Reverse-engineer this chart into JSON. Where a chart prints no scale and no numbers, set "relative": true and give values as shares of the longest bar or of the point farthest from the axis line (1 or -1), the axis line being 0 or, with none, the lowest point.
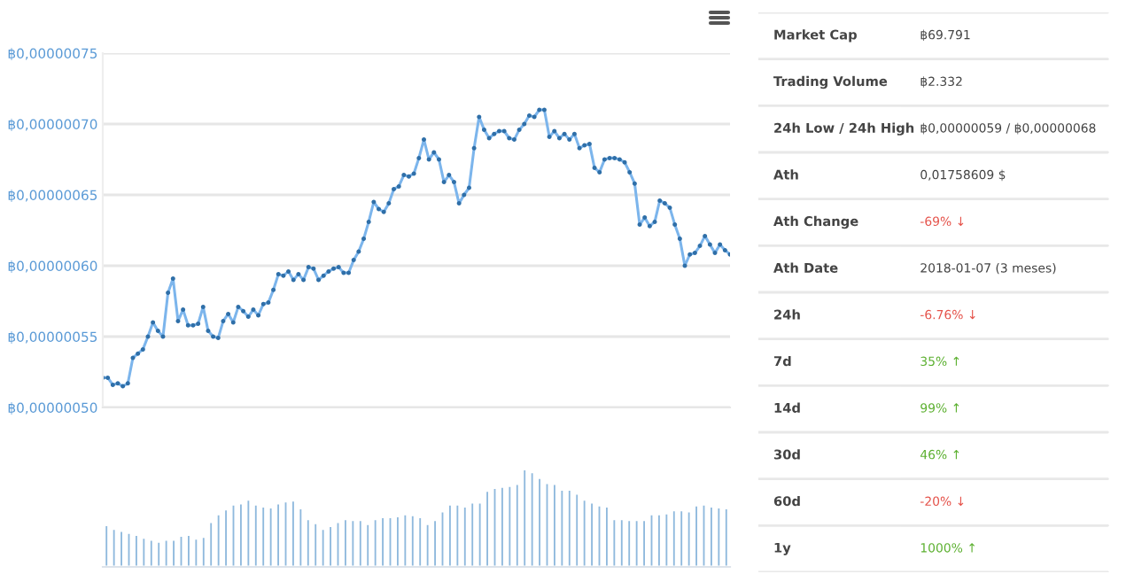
{
  "chart_data": [
    {
      "type": "line",
      "tick_labels": "y",
      "categories": [
        null,
        null,
        null,
        null,
        null,
        null,
        null,
        null,
        null,
        null,
        null,
        null,
        null,
        null,
        null,
        null,
        null,
        null,
        null,
        null,
        null,
        null,
        null,
        null,
        null,
        null,
        null,
        null,
        null,
        null,
        null,
        null,
        null,
        null,
        null,
        null,
        null,
        null,
        null,
        null,
        null,
        null,
        null,
        null,
        null,
        null,
        null,
        null,
        null,
        null,
        null,
        null,
        null,
        null,
        null,
        null,
        null,
        null,
        null,
        null,
        null,
        null,
        null,
        null,
        null,
        null,
        null,
        null,
        null,
        null,
        null,
        null,
        null,
        null,
        null,
        null,
        null,
        null,
        null,
        null,
        null,
        null,
        null,
        null,
        null,
        null,
        null,
        null,
        null,
        null,
        null,
        null,
        null,
        null,
        null,
        null,
        null,
        null,
        null,
        null,
        null,
        null,
        null,
        null,
        null,
        null,
        null,
        null,
        null,
        null,
        null,
        null,
        null,
        null,
        null,
        null,
        null,
        null,
        null,
        null,
        null,
        null,
        null,
        null,
        null,
        null
      ],
      "series": [
        {
          "color": "#7cb5ec",
          "values": [
            5.21e-07,
            5.21e-07,
            5.16e-07,
            5.17e-07,
            5.15e-07,
            5.17e-07,
            5.35e-07,
            5.38e-07,
            5.41e-07,
            5.5e-07,
            5.6e-07,
            5.54e-07,
            5.5e-07,
            5.81e-07,
            5.91e-07,
            5.61e-07,
            5.69e-07,
            5.58e-07,
            5.58e-07,
            5.59e-07,
            5.71e-07,
            5.54e-07,
            5.5e-07,
            5.49e-07,
            5.61e-07,
            5.66e-07,
            5.6e-07,
            5.71e-07,
            5.68e-07,
            5.64e-07,
            5.69e-07,
            5.65e-07,
            5.73e-07,
            5.74e-07,
            5.83e-07,
            5.94e-07,
            5.93e-07,
            5.96e-07,
            5.9e-07,
            5.94e-07,
            5.9e-07,
            5.99e-07,
            5.98e-07,
            5.9e-07,
            5.93e-07,
            5.96e-07,
            5.98e-07,
            5.99e-07,
            5.95e-07,
            5.95e-07,
            6.04e-07,
            6.1e-07,
            6.19e-07,
            6.31e-07,
            6.45e-07,
            6.4e-07,
            6.38e-07,
            6.44e-07,
            6.54e-07,
            6.56e-07,
            6.64e-07,
            6.63e-07,
            6.65e-07,
            6.76e-07,
            6.89e-07,
            6.75e-07,
            6.8e-07,
            6.75e-07,
            6.59e-07,
            6.64e-07,
            6.59e-07,
            6.44e-07,
            6.5e-07,
            6.55e-07,
            6.83e-07,
            7.05e-07,
            6.96e-07,
            6.9e-07,
            6.93e-07,
            6.95e-07,
            6.95e-07,
            6.9e-07,
            6.89e-07,
            6.96e-07,
            7e-07,
            7.06e-07,
            7.05e-07,
            7.1e-07,
            7.1e-07,
            6.91e-07,
            6.95e-07,
            6.9e-07,
            6.93e-07,
            6.89e-07,
            6.93e-07,
            6.83e-07,
            6.85e-07,
            6.86e-07,
            6.69e-07,
            6.66e-07,
            6.75e-07,
            6.76e-07,
            6.76e-07,
            6.75e-07,
            6.73e-07,
            6.66e-07,
            6.58e-07,
            6.29e-07,
            6.34e-07,
            6.28e-07,
            6.31e-07,
            6.46e-07,
            6.44e-07,
            6.41e-07,
            6.29e-07,
            6.19e-07,
            6e-07,
            6.08e-07,
            6.09e-07,
            6.14e-07,
            6.21e-07,
            6.15e-07,
            6.09e-07,
            6.15e-07,
            6.11e-07,
            6.08e-07
          ]
        }
      ],
      "ylim": [
        5e-07,
        7.5e-07
      ],
      "yticks": [
        {
          "value": 5e-07,
          "label": "฿0,00000050"
        },
        {
          "value": 5.5e-07,
          "label": "฿0,00000055"
        },
        {
          "value": 6e-07,
          "label": "฿0,00000060"
        },
        {
          "value": 6.5e-07,
          "label": "฿0,00000065"
        },
        {
          "value": 7e-07,
          "label": "฿0,00000070"
        },
        {
          "value": 7.5e-07,
          "label": "฿0,00000075"
        }
      ],
      "grid": "y",
      "marker": "circle",
      "line_style": "solid"
    },
    {
      "type": "bar",
      "relative": true,
      "color": "#8fb9dd",
      "tick_labels": false,
      "categories": [
        null,
        null,
        null,
        null,
        null,
        null,
        null,
        null,
        null,
        null,
        null,
        null,
        null,
        null,
        null,
        null,
        null,
        null,
        null,
        null,
        null,
        null,
        null,
        null,
        null,
        null,
        null,
        null,
        null,
        null,
        null,
        null,
        null,
        null,
        null,
        null,
        null,
        null,
        null,
        null,
        null,
        null,
        null,
        null,
        null,
        null,
        null,
        null,
        null,
        null,
        null,
        null,
        null,
        null,
        null,
        null,
        null,
        null,
        null,
        null,
        null,
        null,
        null,
        null,
        null,
        null,
        null,
        null,
        null,
        null,
        null,
        null,
        null,
        null,
        null,
        null,
        null,
        null,
        null,
        null,
        null,
        null,
        null,
        null
      ],
      "values": [
        0.43,
        0.39,
        0.37,
        0.35,
        0.33,
        0.3,
        0.28,
        0.26,
        0.28,
        0.28,
        0.32,
        0.33,
        0.29,
        0.31,
        0.46,
        0.54,
        0.59,
        0.64,
        0.65,
        0.69,
        0.64,
        0.62,
        0.61,
        0.65,
        0.67,
        0.68,
        0.6,
        0.49,
        0.45,
        0.39,
        0.42,
        0.46,
        0.49,
        0.48,
        0.48,
        0.44,
        0.49,
        0.51,
        0.51,
        0.52,
        0.54,
        0.53,
        0.51,
        0.44,
        0.48,
        0.57,
        0.64,
        0.64,
        0.62,
        0.66,
        0.66,
        0.78,
        0.81,
        0.82,
        0.83,
        0.85,
        1,
        0.97,
        0.91,
        0.86,
        0.85,
        0.79,
        0.79,
        0.75,
        0.69,
        0.66,
        0.63,
        0.62,
        0.49,
        0.49,
        0.48,
        0.48,
        0.48,
        0.54,
        0.54,
        0.55,
        0.58,
        0.58,
        0.57,
        0.63,
        0.64,
        0.62,
        0.61,
        0.6
      ]
    },
    {
      "type": "other",
      "categories": [
        "Market Cap",
        "Trading Volume",
        "24h Low / 24h High",
        "Ath",
        "Ath Change",
        "Ath Date",
        "24h",
        "7d",
        "14d",
        "30d",
        "60d",
        "1y"
      ],
      "value_labels": [
        "฿69.791",
        "฿2.332",
        "฿0,00000059 / ฿0,00000068",
        "0,01758609 $",
        "-69% ↓",
        "2018-01-07 (3 meses)",
        "-6.76% ↓",
        "35% ↑",
        "99% ↑",
        "46% ↑",
        "-20% ↓",
        "1000% ↑"
      ],
      "colors": [
        "#444444",
        "#444444",
        "#444444",
        "#444444",
        "#e5534b",
        "#444444",
        "#e5534b",
        "#5cb030",
        "#5cb030",
        "#5cb030",
        "#e5534b",
        "#5cb030"
      ]
    }
  ]
}
